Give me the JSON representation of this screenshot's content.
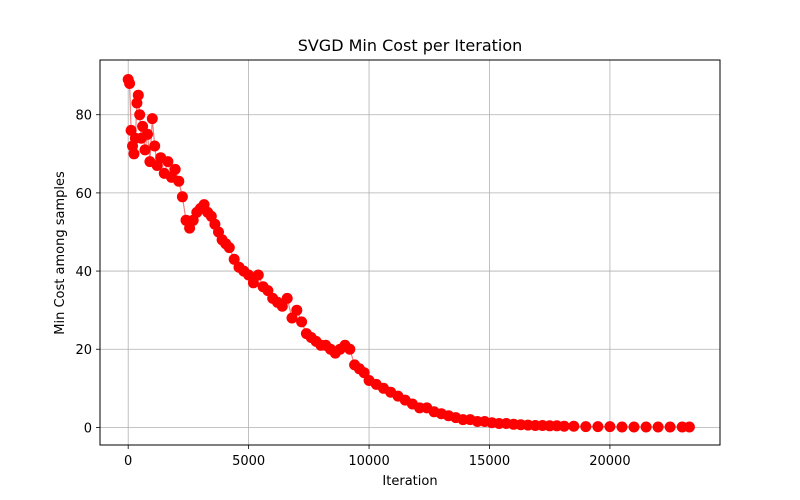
{
  "chart_data": {
    "type": "line",
    "title": "SVGD Min Cost per Iteration",
    "xlabel": "Iteration",
    "ylabel": "Min Cost among samples",
    "xlim": [
      -1170,
      24570
    ],
    "ylim": [
      -4.5,
      94
    ],
    "xticks": [
      0,
      5000,
      10000,
      15000,
      20000
    ],
    "yticks": [
      0,
      20,
      40,
      60,
      80
    ],
    "grid": true,
    "legend": "none",
    "series": [
      {
        "color": "#ff0000",
        "line_color": "#f08080",
        "marker": "circle",
        "x": [
          0,
          60,
          120,
          180,
          240,
          300,
          360,
          420,
          480,
          540,
          600,
          700,
          800,
          900,
          1000,
          1100,
          1200,
          1350,
          1500,
          1650,
          1800,
          1950,
          2100,
          2250,
          2400,
          2550,
          2700,
          2850,
          3000,
          3150,
          3300,
          3450,
          3600,
          3750,
          3900,
          4050,
          4200,
          4400,
          4600,
          4800,
          5000,
          5200,
          5400,
          5600,
          5800,
          6000,
          6200,
          6400,
          6600,
          6800,
          7000,
          7200,
          7400,
          7600,
          7800,
          8000,
          8200,
          8400,
          8600,
          8800,
          9000,
          9200,
          9400,
          9600,
          9800,
          10000,
          10300,
          10600,
          10900,
          11200,
          11500,
          11800,
          12100,
          12400,
          12700,
          13000,
          13300,
          13600,
          13900,
          14200,
          14500,
          14800,
          15100,
          15400,
          15700,
          16000,
          16300,
          16600,
          16900,
          17200,
          17500,
          17800,
          18100,
          18500,
          19000,
          19500,
          20000,
          20500,
          21000,
          21500,
          22000,
          22500,
          23000,
          23300
        ],
        "y": [
          89,
          88,
          76,
          72,
          70,
          74,
          83,
          85,
          80,
          74,
          77,
          71,
          75,
          68,
          79,
          72,
          67,
          69,
          65,
          68,
          64,
          66,
          63,
          59,
          53,
          51,
          53,
          55,
          56,
          57,
          55,
          54,
          52,
          50,
          48,
          47,
          46,
          43,
          41,
          40,
          39,
          37,
          39,
          36,
          35,
          33,
          32,
          31,
          33,
          28,
          30,
          27,
          24,
          23,
          22,
          21,
          21,
          20,
          19,
          20,
          21,
          20,
          16,
          15,
          14,
          12,
          11,
          10,
          9,
          8,
          7,
          6,
          5,
          5,
          4,
          3.5,
          3,
          2.5,
          2,
          2,
          1.5,
          1.5,
          1.2,
          1,
          1,
          0.8,
          0.7,
          0.6,
          0.5,
          0.5,
          0.4,
          0.4,
          0.3,
          0.3,
          0.2,
          0.2,
          0.2,
          0.1,
          0.1,
          0.1,
          0.1,
          0.1,
          0.1,
          0.1
        ]
      }
    ]
  }
}
